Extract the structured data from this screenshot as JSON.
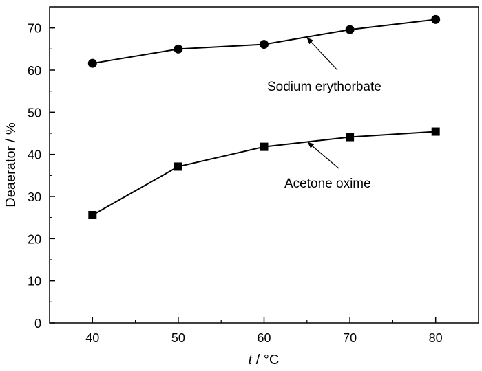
{
  "chart_data": {
    "type": "line",
    "title": "",
    "xlabel_italic": "t",
    "xlabel_unit": " / °C",
    "ylabel": "Deaerator / %",
    "xlim": [
      35,
      85
    ],
    "ylim": [
      0,
      75
    ],
    "xticks": [
      40,
      50,
      60,
      70,
      80
    ],
    "yticks": [
      0,
      10,
      20,
      30,
      40,
      50,
      60,
      70
    ],
    "grid": false,
    "x": [
      40,
      50,
      60,
      70,
      80
    ],
    "series": [
      {
        "name": "Sodium erythorbate",
        "marker": "circle",
        "values": [
          61.6,
          65.0,
          66.1,
          69.6,
          72.0
        ]
      },
      {
        "name": "Acetone oxime",
        "marker": "square",
        "values": [
          25.6,
          37.1,
          41.8,
          44.1,
          45.4
        ]
      }
    ],
    "colors": {
      "line": "#000000",
      "background": "#ffffff"
    }
  }
}
